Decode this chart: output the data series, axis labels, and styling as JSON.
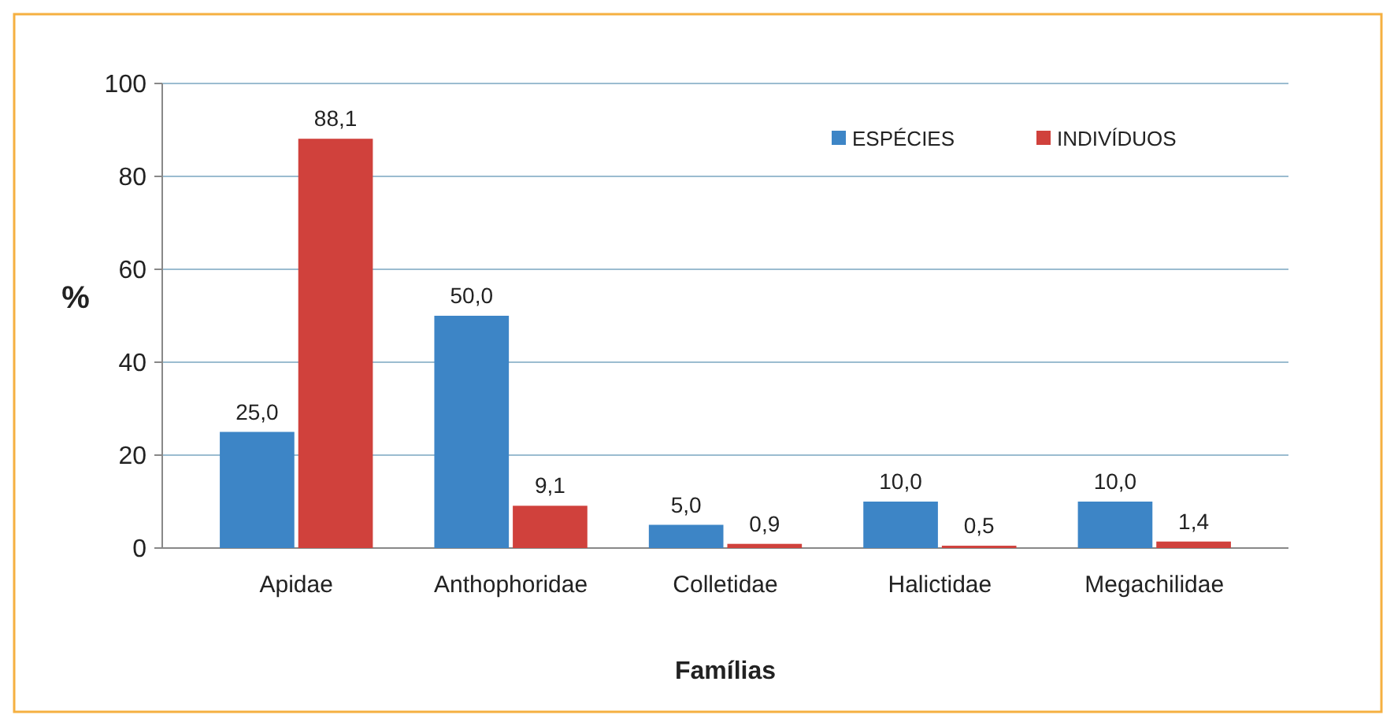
{
  "chart_data": {
    "type": "bar",
    "xlabel": "Famílias",
    "ylabel": "%",
    "categories": [
      "Apidae",
      "Anthophoridae",
      "Colletidae",
      "Halictidae",
      "Megachilidae"
    ],
    "series": [
      {
        "name": "ESPÉCIES",
        "color": "#3d85c6",
        "values": [
          25.0,
          50.0,
          5.0,
          10.0,
          10.0
        ],
        "value_labels": [
          "25,0",
          "50,0",
          "5,0",
          "10,0",
          "10,0"
        ]
      },
      {
        "name": "INDIVÍDUOS",
        "color": "#d0413c",
        "values": [
          88.1,
          9.1,
          0.9,
          0.5,
          1.4
        ],
        "value_labels": [
          "88,1",
          "9,1",
          "0,9",
          "0,5",
          "1,4"
        ]
      }
    ],
    "ylim": [
      0,
      100
    ],
    "yticks": [
      0,
      20,
      40,
      60,
      80,
      100
    ],
    "grid": "y",
    "legend": "top right"
  }
}
